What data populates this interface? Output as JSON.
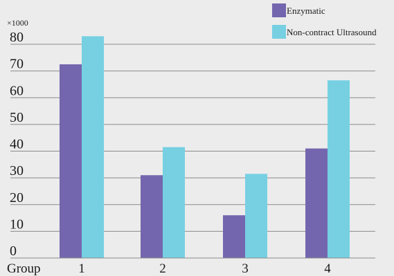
{
  "chart_data": {
    "type": "bar",
    "axis_multiplier": "×1000",
    "x_axis_title": "Group",
    "categories": [
      "1",
      "2",
      "3",
      "4"
    ],
    "series": [
      {
        "name": "Enzymatic",
        "color": "#7466ae",
        "values": [
          72.5,
          31,
          16,
          41
        ]
      },
      {
        "name": "Non-contract Ultrasound",
        "color": "#76d0e2",
        "values": [
          83,
          41.5,
          31.5,
          66.5
        ]
      }
    ],
    "y_ticks": [
      0,
      10,
      20,
      30,
      40,
      50,
      60,
      70,
      80
    ],
    "ylim": [
      0,
      90
    ],
    "grid": true,
    "legend_position": "top-right"
  }
}
